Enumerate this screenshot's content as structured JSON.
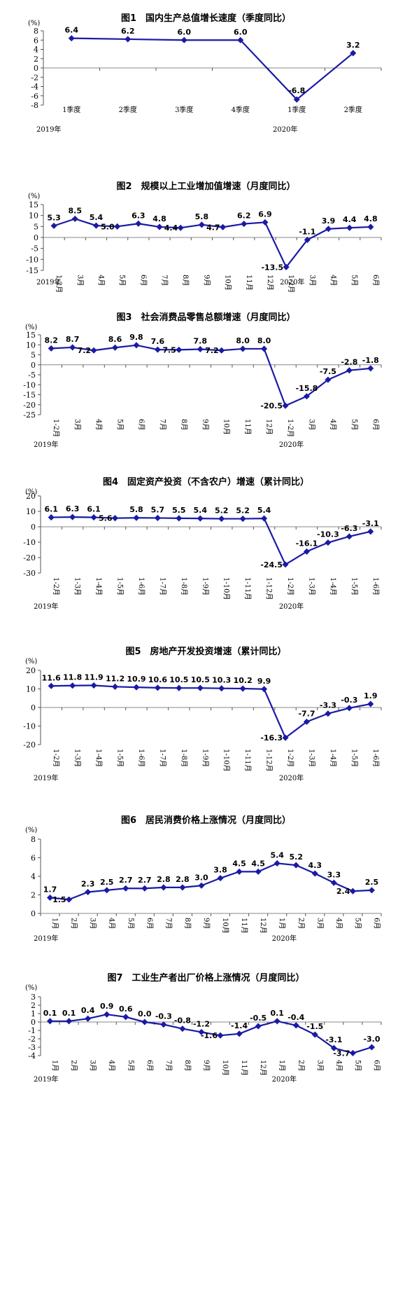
{
  "colors": {
    "series": "#1a1aa6"
  },
  "chart_data": [
    {
      "type": "line",
      "title": "图1　国内生产总值增长速度（季度同比）",
      "unit": "(%)",
      "yticks": [
        "8",
        "6",
        "4",
        "2",
        "0",
        "-2",
        "-4",
        "-6",
        "-8"
      ],
      "ylim": [
        -8,
        8
      ],
      "categories": [
        "1季度",
        "2季度",
        "3季度",
        "4季度",
        "1季度",
        "2季度"
      ],
      "values": [
        6.4,
        6.2,
        6.0,
        6.0,
        -6.8,
        3.2
      ],
      "labels": [
        "6.4",
        "6.2",
        "6.0",
        "6.0",
        "-6.8",
        "3.2"
      ],
      "years": [
        {
          "text": "2019年",
          "at": 0
        },
        {
          "text": "2020年",
          "at": 4
        }
      ]
    },
    {
      "type": "line",
      "title": "图2　规模以上工业增加值增速（月度同比）",
      "unit": "(%)",
      "yticks": [
        "15",
        "10",
        "5",
        "0",
        "-5",
        "-10",
        "-15"
      ],
      "ylim": [
        -15,
        15
      ],
      "categories": [
        "1-2月",
        "3月",
        "4月",
        "5月",
        "6月",
        "7月",
        "8月",
        "9月",
        "10月",
        "11月",
        "12月",
        "1-2月",
        "3月",
        "4月",
        "5月",
        "6月"
      ],
      "values": [
        5.3,
        8.5,
        5.4,
        5.0,
        6.3,
        4.8,
        4.4,
        5.8,
        4.7,
        6.2,
        6.9,
        -13.5,
        -1.1,
        3.9,
        4.4,
        4.8
      ],
      "labels": [
        "5.3",
        "8.5",
        "5.4",
        "5.0",
        "6.3",
        "4.8",
        "4.4",
        "5.8",
        "4.7",
        "6.2",
        "6.9",
        "-13.5",
        "-1.1",
        "3.9",
        "4.4",
        "4.8"
      ],
      "years": [
        {
          "text": "2019年",
          "at": 0
        },
        {
          "text": "2020年",
          "at": 11
        }
      ]
    },
    {
      "type": "line",
      "title": "图3　社会消费品零售总额增速（月度同比）",
      "unit": "(%)",
      "yticks": [
        "15",
        "10",
        "5",
        "0",
        "-5",
        "-10",
        "-15",
        "-20",
        "-25"
      ],
      "ylim": [
        -25,
        15
      ],
      "categories": [
        "1-2月",
        "3月",
        "4月",
        "5月",
        "6月",
        "7月",
        "8月",
        "9月",
        "10月",
        "11月",
        "12月",
        "1-2月",
        "3月",
        "4月",
        "5月",
        "6月"
      ],
      "values": [
        8.2,
        8.7,
        7.2,
        8.6,
        9.8,
        7.6,
        7.5,
        7.8,
        7.2,
        8.0,
        8.0,
        -20.5,
        -15.8,
        -7.5,
        -2.8,
        -1.8
      ],
      "labels": [
        "8.2",
        "8.7",
        "7.2",
        "8.6",
        "9.8",
        "7.6",
        "7.5",
        "7.8",
        "7.2",
        "8.0",
        "8.0",
        "-20.5",
        "-15.8",
        "-7.5",
        "-2.8",
        "-1.8"
      ],
      "years": [
        {
          "text": "2019年",
          "at": 0
        },
        {
          "text": "2020年",
          "at": 11
        }
      ]
    },
    {
      "type": "line",
      "title": "图4　固定资产投资（不含农户）增速（累计同比）",
      "unit": "(%)",
      "yticks": [
        "20",
        "10",
        "0",
        "-10",
        "-20",
        "-30"
      ],
      "ylim": [
        -30,
        20
      ],
      "categories": [
        "1-2月",
        "1-3月",
        "1-4月",
        "1-5月",
        "1-6月",
        "1-7月",
        "1-8月",
        "1-9月",
        "1-10月",
        "1-11月",
        "1-12月",
        "1-2月",
        "1-3月",
        "1-4月",
        "1-5月",
        "1-6月"
      ],
      "values": [
        6.1,
        6.3,
        6.1,
        5.6,
        5.8,
        5.7,
        5.5,
        5.4,
        5.2,
        5.2,
        5.4,
        -24.5,
        -16.1,
        -10.3,
        -6.3,
        -3.1
      ],
      "labels": [
        "6.1",
        "6.3",
        "6.1",
        "5.6",
        "5.8",
        "5.7",
        "5.5",
        "5.4",
        "5.2",
        "5.2",
        "5.4",
        "-24.5",
        "-16.1",
        "-10.3",
        "-6.3",
        "-3.1"
      ],
      "years": [
        {
          "text": "2019年",
          "at": 0
        },
        {
          "text": "2020年",
          "at": 11
        }
      ]
    },
    {
      "type": "line",
      "title": "图5　房地产开发投资增速（累计同比）",
      "unit": "(%)",
      "yticks": [
        "20",
        "10",
        "0",
        "-10",
        "-20"
      ],
      "ylim": [
        -20,
        20
      ],
      "categories": [
        "1-2月",
        "1-3月",
        "1-4月",
        "1-5月",
        "1-6月",
        "1-7月",
        "1-8月",
        "1-9月",
        "1-10月",
        "1-11月",
        "1-12月",
        "1-2月",
        "1-3月",
        "1-4月",
        "1-5月",
        "1-6月"
      ],
      "values": [
        11.6,
        11.8,
        11.9,
        11.2,
        10.9,
        10.6,
        10.5,
        10.5,
        10.3,
        10.2,
        9.9,
        -16.3,
        -7.7,
        -3.3,
        -0.3,
        1.9
      ],
      "labels": [
        "11.6",
        "11.8",
        "11.9",
        "11.2",
        "10.9",
        "10.6",
        "10.5",
        "10.5",
        "10.3",
        "10.2",
        "9.9",
        "-16.3",
        "-7.7",
        "-3.3",
        "-0.3",
        "1.9"
      ],
      "years": [
        {
          "text": "2019年",
          "at": 0
        },
        {
          "text": "2020年",
          "at": 11
        }
      ]
    },
    {
      "type": "line",
      "title": "图6　居民消费价格上涨情况（月度同比）",
      "unit": "(%)",
      "yticks": [
        "8",
        "6",
        "4",
        "2",
        "0"
      ],
      "ylim": [
        0,
        8
      ],
      "categories": [
        "1月",
        "2月",
        "3月",
        "4月",
        "5月",
        "6月",
        "7月",
        "8月",
        "9月",
        "10月",
        "11月",
        "12月",
        "1月",
        "2月",
        "3月",
        "4月",
        "5月",
        "6月"
      ],
      "values": [
        1.7,
        1.5,
        2.3,
        2.5,
        2.7,
        2.7,
        2.8,
        2.8,
        3.0,
        3.8,
        4.5,
        4.5,
        5.4,
        5.2,
        4.3,
        3.3,
        2.4,
        2.5
      ],
      "labels": [
        "1.7",
        "1.5",
        "2.3",
        "2.5",
        "2.7",
        "2.7",
        "2.8",
        "2.8",
        "3.0",
        "3.8",
        "4.5",
        "4.5",
        "5.4",
        "5.2",
        "4.3",
        "3.3",
        "2.4",
        "2.5"
      ],
      "years": [
        {
          "text": "2019年",
          "at": 0
        },
        {
          "text": "2020年",
          "at": 12
        }
      ]
    },
    {
      "type": "line",
      "title": "图7　工业生产者出厂价格上涨情况（月度同比）",
      "unit": "(%)",
      "yticks": [
        "3",
        "2",
        "1",
        "0",
        "-1",
        "-2",
        "-3",
        "-4"
      ],
      "ylim": [
        -4,
        3
      ],
      "categories": [
        "1月",
        "2月",
        "3月",
        "4月",
        "5月",
        "6月",
        "7月",
        "8月",
        "9月",
        "10月",
        "11月",
        "12月",
        "1月",
        "2月",
        "3月",
        "4月",
        "5月",
        "6月"
      ],
      "values": [
        0.1,
        0.1,
        0.4,
        0.9,
        0.6,
        0.0,
        -0.3,
        -0.8,
        -1.2,
        -1.6,
        -1.4,
        -0.5,
        0.1,
        -0.4,
        -1.5,
        -3.1,
        -3.7,
        -3.0
      ],
      "labels": [
        "0.1",
        "0.1",
        "0.4",
        "0.9",
        "0.6",
        "0.0",
        "-0.3",
        "-0.8",
        "-1.2",
        "-1.6",
        "-1.4",
        "-0.5",
        "0.1",
        "-0.4",
        "-1.5",
        "-3.1",
        "-3.7",
        "-3.0"
      ],
      "years": [
        {
          "text": "2019年",
          "at": 0
        },
        {
          "text": "2020年",
          "at": 12
        }
      ]
    }
  ]
}
